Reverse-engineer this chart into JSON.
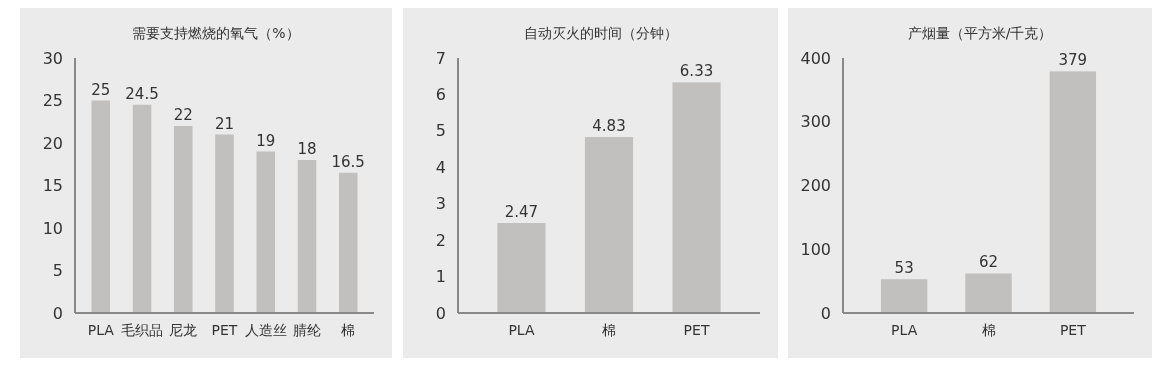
{
  "chart_data": [
    {
      "type": "bar",
      "title": "需要支持燃烧的氧气（%）",
      "categories": [
        "PLA",
        "毛织品",
        "尼龙",
        "PET",
        "人造丝",
        "腈纶",
        "棉"
      ],
      "values": [
        25,
        24.5,
        22,
        21,
        19,
        18,
        16.5
      ],
      "color": "#c2c0bf",
      "ylim": [
        0,
        30
      ],
      "yticks": [
        0,
        5,
        10,
        15,
        20,
        25,
        30
      ],
      "data_labels": true,
      "grid": false
    },
    {
      "type": "bar",
      "title": "自动灭火的时间（分钟）",
      "categories": [
        "PLA",
        "棉",
        "PET"
      ],
      "values": [
        2.47,
        4.83,
        6.33
      ],
      "color": "#c2c0bf",
      "ylim": [
        0,
        7
      ],
      "yticks": [
        0,
        1,
        2,
        3,
        4,
        5,
        6,
        7
      ],
      "data_labels": true,
      "grid": false
    },
    {
      "type": "bar",
      "title": "产烟量（平方米/千克）",
      "categories": [
        "PLA",
        "棉",
        "PET"
      ],
      "values": [
        53,
        62,
        379
      ],
      "color": "#c2c0bf",
      "ylim": [
        0,
        400
      ],
      "yticks": [
        0,
        100,
        200,
        300,
        400
      ],
      "data_labels": true,
      "grid": false
    }
  ]
}
